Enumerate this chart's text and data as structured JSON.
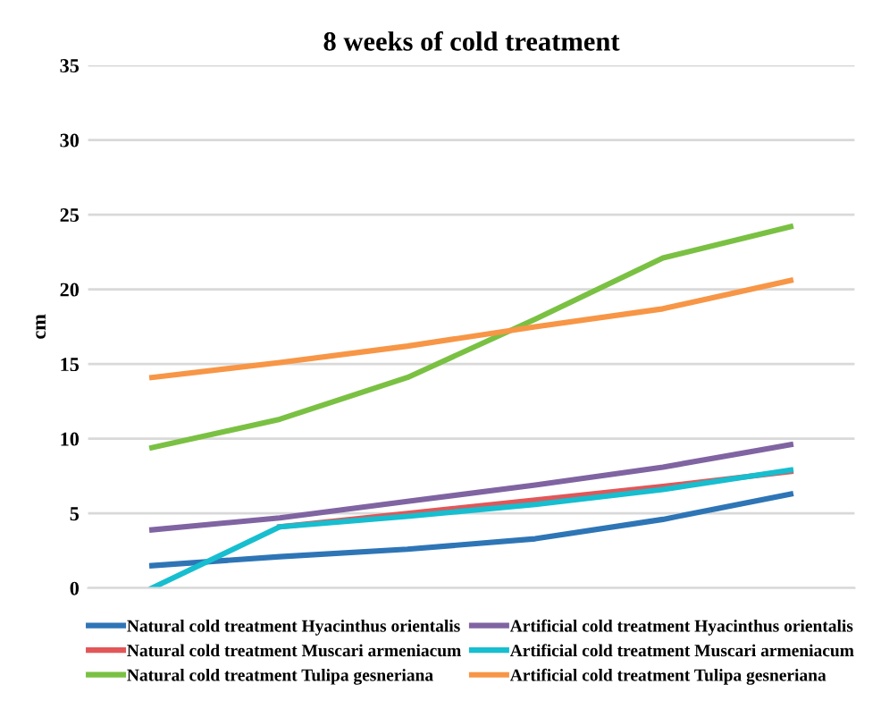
{
  "chart_data": {
    "type": "line",
    "title": "8 weeks of cold treatment",
    "ylabel": "cm",
    "categories": [
      null,
      null,
      null,
      null,
      null,
      null
    ],
    "series": [
      {
        "name": "Natural cold treatment Hyacinthus orientalis",
        "color": "#2e75b6",
        "values": [
          1.5,
          2.1,
          2.6,
          3.3,
          4.6,
          6.3
        ]
      },
      {
        "name": "Natural cold treatment Muscari armeniacum",
        "color": "#e15759",
        "values": [
          null,
          4.1,
          5.0,
          5.9,
          6.8,
          7.8
        ]
      },
      {
        "name": "Natural cold treatment Tulipa gesneriana",
        "color": "#7ac143",
        "values": [
          9.4,
          11.3,
          14.1,
          18.0,
          22.1,
          24.2
        ]
      },
      {
        "name": "Artificial cold treatment Hyacinthus orientalis",
        "color": "#8064a2",
        "values": [
          3.9,
          4.7,
          5.8,
          6.9,
          8.1,
          9.6
        ]
      },
      {
        "name": "Artificial cold treatment Muscari armeniacum",
        "color": "#17becf",
        "values": [
          0,
          4.1,
          4.8,
          5.6,
          6.6,
          7.9
        ]
      },
      {
        "name": "Artificial cold treatment Tulipa gesneriana",
        "color": "#f79646",
        "values": [
          14.1,
          15.1,
          16.2,
          17.5,
          18.7,
          20.6
        ]
      }
    ],
    "ylim": [
      0,
      35
    ],
    "yticks": [
      0,
      5,
      10,
      15,
      20,
      25,
      30,
      35
    ],
    "grid": "y",
    "legend": "bottom",
    "tick_labels": "y"
  }
}
